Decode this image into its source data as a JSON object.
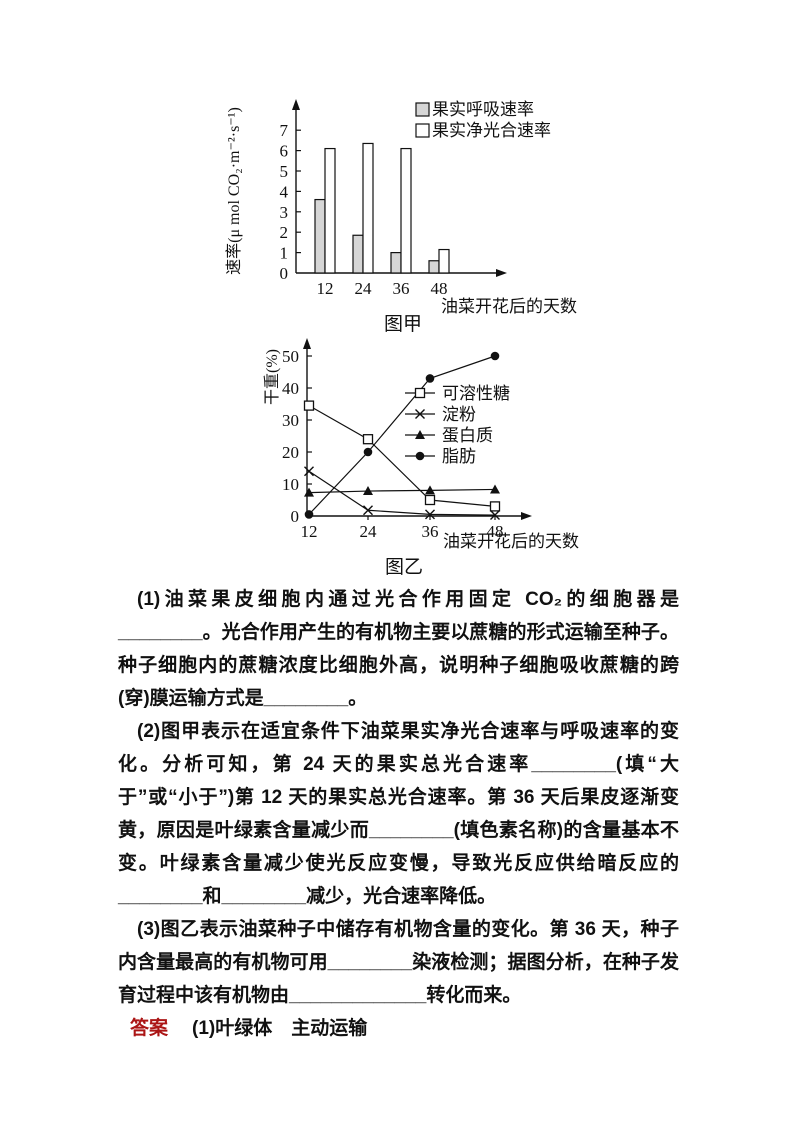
{
  "page": {
    "background": "#ffffff",
    "text_color": "#111111",
    "answer_label_color": "#ab1515"
  },
  "chart_data": [
    {
      "type": "bar",
      "title": "图甲",
      "ylabel": "速率(μ mol CO₂·m⁻²·s⁻¹)",
      "xlabel": "油菜开花后的天数",
      "categories": [
        "12",
        "24",
        "36",
        "48"
      ],
      "series": [
        {
          "name": "果实呼吸速率",
          "fill": "#d6d6d6",
          "values": [
            3.6,
            1.85,
            1.0,
            0.6
          ]
        },
        {
          "name": "果实净光合速率",
          "fill": "#ffffff",
          "values": [
            6.1,
            6.35,
            6.1,
            1.15
          ]
        }
      ],
      "ylim": [
        0,
        7.5
      ],
      "yticks": [
        0,
        1,
        2,
        3,
        4,
        5,
        6,
        7
      ],
      "legend_position": "top-right",
      "grid": false
    },
    {
      "type": "line",
      "title": "图乙",
      "ylabel": "干重(%)",
      "xlabel": "油菜开花后的天数",
      "x": [
        "12",
        "24",
        "36",
        "48"
      ],
      "series": [
        {
          "name": "可溶性糖",
          "marker": "square-open",
          "values": [
            34.5,
            24,
            5,
            3
          ]
        },
        {
          "name": "淀粉",
          "marker": "x",
          "values": [
            14,
            1.8,
            0.5,
            0.3
          ]
        },
        {
          "name": "蛋白质",
          "marker": "triangle-filled",
          "values": [
            7.3,
            7.8,
            8,
            8.3
          ]
        },
        {
          "name": "脂肪",
          "marker": "circle-filled",
          "values": [
            0.5,
            20,
            43,
            50
          ]
        }
      ],
      "ylim": [
        0,
        55
      ],
      "yticks": [
        0,
        10,
        20,
        30,
        40,
        50
      ],
      "legend_position": "middle-right",
      "grid": false
    }
  ],
  "questions": [
    {
      "text": "(1)油菜果皮细胞内通过光合作用固定 CO₂的细胞器是________。光合作用产生的有机物主要以蔗糖的形式运输至种子。种子细胞内的蔗糖浓度比细胞外高，说明种子细胞吸收蔗糖的跨(穿)膜运输方式是________。"
    },
    {
      "text": "(2)图甲表示在适宜条件下油菜果实净光合速率与呼吸速率的变化。分析可知，第 24 天的果实总光合速率________(填“大于”或“小于”)第 12 天的果实总光合速率。第 36 天后果皮逐渐变黄，原因是叶绿素含量减少而________(填色素名称)的含量基本不变。叶绿素含量减少使光反应变慢，导致光反应供给暗反应的________和________减少，光合速率降低。"
    },
    {
      "text": "(3)图乙表示油菜种子中储存有机物含量的变化。第 36 天，种子内含量最高的有机物可用________染液检测；据图分析，在种子发育过程中该有机物由_____________转化而来。"
    }
  ],
  "answer": {
    "label": "答案",
    "text": "(1)叶绿体　主动运输"
  }
}
